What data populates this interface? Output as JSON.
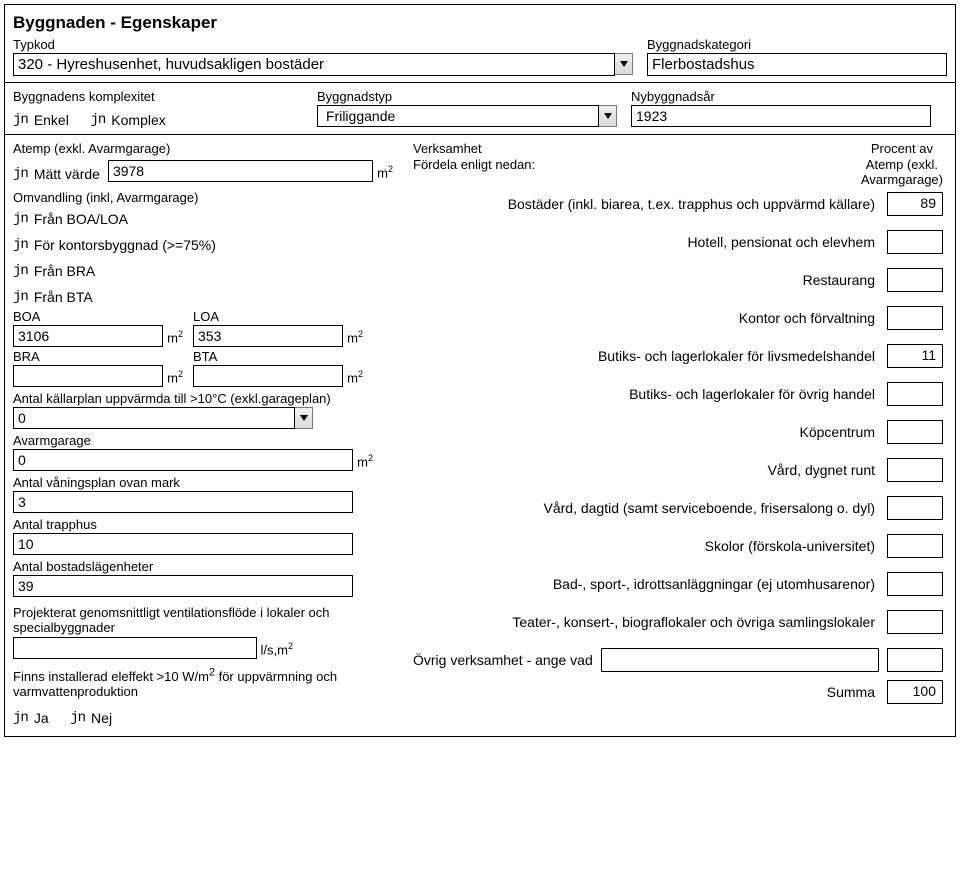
{
  "colors": {
    "text": "#000000",
    "background": "#ffffff",
    "border": "#000000",
    "dropdown_btn_top": "#f0f0f0",
    "dropdown_btn_bottom": "#d8d8d8",
    "dropdown_btn_border": "#7a7a7a"
  },
  "typography": {
    "base_font": "Arial",
    "base_size_pt": 10,
    "title_size_pt": 13,
    "title_weight": "bold"
  },
  "section_title": "Byggnaden - Egenskaper",
  "typkod": {
    "label": "Typkod",
    "value": "320 - Hyreshusenhet, huvudsakligen bostäder"
  },
  "byggnadskategori": {
    "label": "Byggnadskategori",
    "value": "Flerbostadshus"
  },
  "komplexitet": {
    "label": "Byggnadens komplexitet",
    "opt_enkel": "Enkel",
    "opt_komplex": "Komplex"
  },
  "byggnadstyp": {
    "label": "Byggnadstyp",
    "value": "Friliggande"
  },
  "nybyggnadsar": {
    "label": "Nybyggnadsår",
    "value": "1923"
  },
  "atemp": {
    "label": "Atemp (exkl. Avarmgarage)",
    "opt_matt": "Mätt värde",
    "value": "3978",
    "unit": "m²"
  },
  "omvandling": {
    "label": "Omvandling (inkl, Avarmgarage)",
    "opt_boa_loa": "Från BOA/LOA",
    "opt_kontor": "För kontorsbyggnad (>=75%)",
    "opt_bra": "Från BRA",
    "opt_bta": "Från BTA"
  },
  "boa": {
    "label": "BOA",
    "value": "3106"
  },
  "loa": {
    "label": "LOA",
    "value": "353"
  },
  "bra": {
    "label": "BRA",
    "value": ""
  },
  "bta": {
    "label": "BTA",
    "value": ""
  },
  "kallarplan": {
    "label": "Antal källarplan uppvärmda till >10°C (exkl.garageplan)",
    "value": "0"
  },
  "avarmgarage": {
    "label": "Avarmgarage",
    "value": "0"
  },
  "vaningsplan": {
    "label": "Antal våningsplan ovan mark",
    "value": "3"
  },
  "trapphus": {
    "label": "Antal trapphus",
    "value": "10"
  },
  "lagenheter": {
    "label": "Antal bostadslägenheter",
    "value": "39"
  },
  "ventilation": {
    "label": "Projekterat genomsnittligt ventilationsflöde i lokaler och specialbyggnader",
    "value": "",
    "unit": "l/s,m²"
  },
  "eleffekt": {
    "label": "Finns installerad eleffekt >10 W/m² för uppvärmning och varmvattenproduktion",
    "opt_ja": "Ja",
    "opt_nej": "Nej"
  },
  "verksamhet": {
    "header_label": "Verksamhet",
    "subheader": "Fördela enligt nedan:",
    "right_head1": "Procent av",
    "right_head2": "Atemp (exkl.",
    "right_head3": "Avarmgarage)",
    "rows": [
      {
        "label": "Bostäder (inkl. biarea, t.ex. trapphus och uppvärmd källare)",
        "value": "89"
      },
      {
        "label": "Hotell, pensionat och elevhem",
        "value": ""
      },
      {
        "label": "Restaurang",
        "value": ""
      },
      {
        "label": "Kontor och förvaltning",
        "value": ""
      },
      {
        "label": "Butiks- och lagerlokaler för livsmedelshandel",
        "value": "11"
      },
      {
        "label": "Butiks- och lagerlokaler för övrig handel",
        "value": ""
      },
      {
        "label": "Köpcentrum",
        "value": ""
      },
      {
        "label": "Vård, dygnet runt",
        "value": ""
      },
      {
        "label": "Vård, dagtid (samt serviceboende, frisersalong o. dyl)",
        "value": ""
      },
      {
        "label": "Skolor (förskola-universitet)",
        "value": ""
      },
      {
        "label": "Bad-, sport-, idrottsanläggningar (ej utomhusarenor)",
        "value": ""
      },
      {
        "label": "Teater-, konsert-, biograflokaler och övriga samlingslokaler",
        "value": ""
      },
      {
        "label": "Övrig verksamhet - ange vad",
        "value": "",
        "hasInput": true
      }
    ],
    "summa_label": "Summa",
    "summa_value": "100"
  }
}
